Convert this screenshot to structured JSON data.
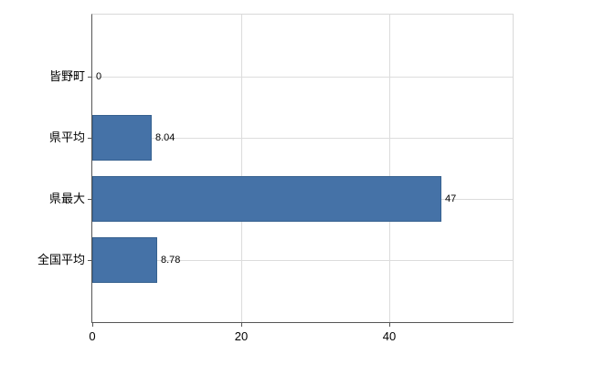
{
  "chart_data": {
    "type": "bar",
    "orientation": "horizontal",
    "title": "",
    "categories": [
      "皆野町",
      "県平均",
      "県最大",
      "全国平均"
    ],
    "values": [
      0,
      8.04,
      47,
      8.78
    ],
    "value_labels": [
      "0",
      "8.04",
      "47",
      "8.78"
    ],
    "xticks": [
      0,
      20,
      40
    ],
    "xlim": [
      0,
      56.6
    ],
    "grid": true,
    "legend": false,
    "bar_color": "#4572a7",
    "bar_border_color": "#36618f",
    "axis_color": "#565656",
    "gridline_color": "#dcdcdc"
  }
}
